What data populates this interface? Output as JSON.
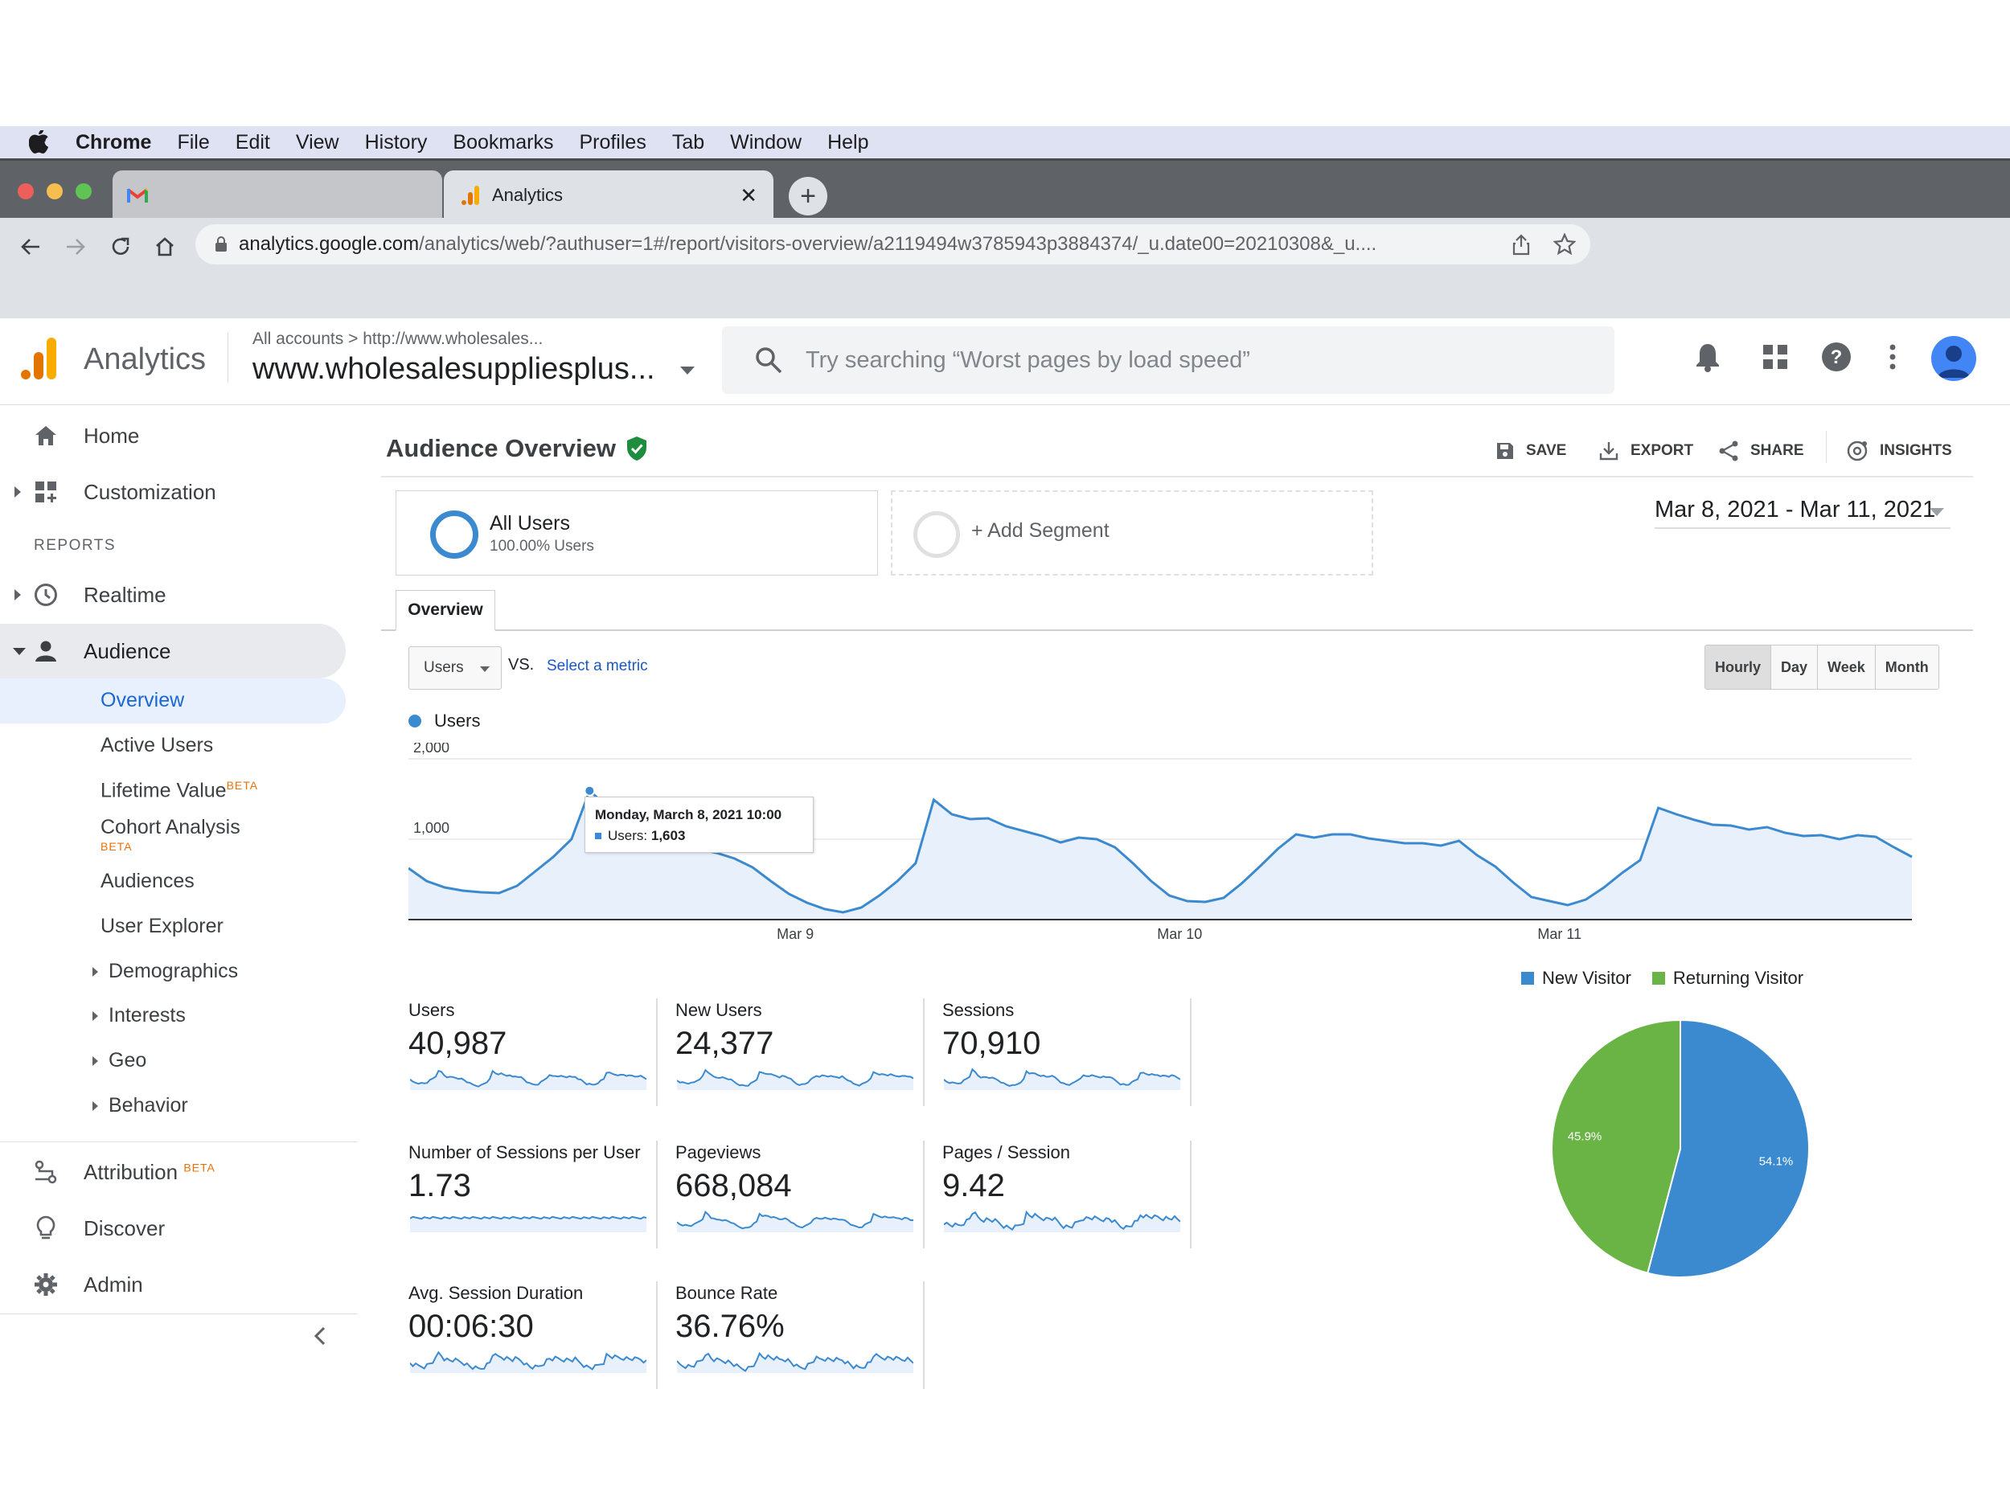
{
  "menubar": {
    "items": [
      "Chrome",
      "File",
      "Edit",
      "View",
      "History",
      "Bookmarks",
      "Profiles",
      "Tab",
      "Window",
      "Help"
    ]
  },
  "browser": {
    "tab_active_title": "Analytics",
    "url_host": "analytics.google.com",
    "url_path": "/analytics/web/?authuser=1#/report/visitors-overview/a2119494w3785943p3884374/_u.date00=20210308&_u...."
  },
  "header": {
    "app_name": "Analytics",
    "breadcrumb_accounts": "All accounts",
    "breadcrumb_separator": ">",
    "breadcrumb_property": "http://www.wholesales...",
    "property_name": "www.wholesalesuppliesplus...",
    "search_placeholder": "Try searching “Worst pages by load speed”"
  },
  "sidebar": {
    "home": "Home",
    "customization": "Customization",
    "reports_header": "REPORTS",
    "realtime": "Realtime",
    "audience": "Audience",
    "audience_items": {
      "overview": "Overview",
      "active_users": "Active Users",
      "lifetime_value": "Lifetime Value",
      "cohort_analysis": "Cohort Analysis",
      "audiences": "Audiences",
      "user_explorer": "User Explorer",
      "demographics": "Demographics",
      "interests": "Interests",
      "geo": "Geo",
      "behavior": "Behavior"
    },
    "beta_label": "BETA",
    "attribution": "Attribution",
    "discover": "Discover",
    "admin": "Admin"
  },
  "report": {
    "title": "Audience Overview",
    "actions": {
      "save": "SAVE",
      "export": "EXPORT",
      "share": "SHARE",
      "insights": "INSIGHTS"
    },
    "segment": {
      "name": "All Users",
      "percent": "100.00% Users",
      "add": "+ Add Segment"
    },
    "date_range": "Mar 8, 2021 - Mar 11, 2021",
    "tab": "Overview",
    "metric_select": "Users",
    "vs": "VS.",
    "select_metric": "Select a metric",
    "granularity": [
      "Hourly",
      "Day",
      "Week",
      "Month"
    ],
    "granularity_active": "Hourly",
    "tooltip": {
      "date": "Monday, March 8, 2021 10:00",
      "label": "Users:",
      "value": "1,603"
    }
  },
  "metrics": [
    {
      "label": "Users",
      "value": "40,987"
    },
    {
      "label": "New Users",
      "value": "24,377"
    },
    {
      "label": "Sessions",
      "value": "70,910"
    },
    {
      "label": "Number of Sessions per User",
      "value": "1.73"
    },
    {
      "label": "Pageviews",
      "value": "668,084"
    },
    {
      "label": "Pages / Session",
      "value": "9.42"
    },
    {
      "label": "Avg. Session Duration",
      "value": "00:06:30"
    },
    {
      "label": "Bounce Rate",
      "value": "36.76%"
    }
  ],
  "colors": {
    "series": "#3b8ad0",
    "area": "#e8f0fb",
    "new_visitor": "#3b8ad0",
    "returning_visitor": "#6ab446"
  },
  "chart_data": [
    {
      "type": "area",
      "series": [
        {
          "name": "Users",
          "values": [
            640,
            480,
            400,
            360,
            340,
            330,
            420,
            600,
            780,
            1000,
            1603,
            1400,
            1100,
            950,
            900,
            920,
            880,
            830,
            760,
            650,
            480,
            320,
            210,
            130,
            90,
            150,
            300,
            480,
            700,
            1490,
            1310,
            1250,
            1260,
            1160,
            1100,
            1040,
            960,
            1020,
            1000,
            900,
            700,
            480,
            300,
            230,
            220,
            270,
            450,
            660,
            880,
            1060,
            1020,
            1060,
            1060,
            1010,
            980,
            950,
            950,
            920,
            980,
            800,
            660,
            460,
            280,
            230,
            180,
            250,
            400,
            580,
            740,
            1390,
            1310,
            1240,
            1180,
            1170,
            1120,
            1150,
            1080,
            1040,
            1050,
            1000,
            1050,
            1030,
            900,
            780
          ]
        }
      ],
      "x_tick_labels": [
        "Mar 9",
        "Mar 10",
        "Mar 11"
      ],
      "y_tick_labels": [
        "2,000",
        "1,000"
      ],
      "ylim": [
        0,
        2000
      ],
      "grid": true
    },
    {
      "type": "pie",
      "labels": [
        "New Visitor",
        "Returning Visitor"
      ],
      "values": [
        54.1,
        45.9
      ],
      "value_labels": [
        "54.1%",
        "45.9%"
      ],
      "legend": "top"
    }
  ]
}
